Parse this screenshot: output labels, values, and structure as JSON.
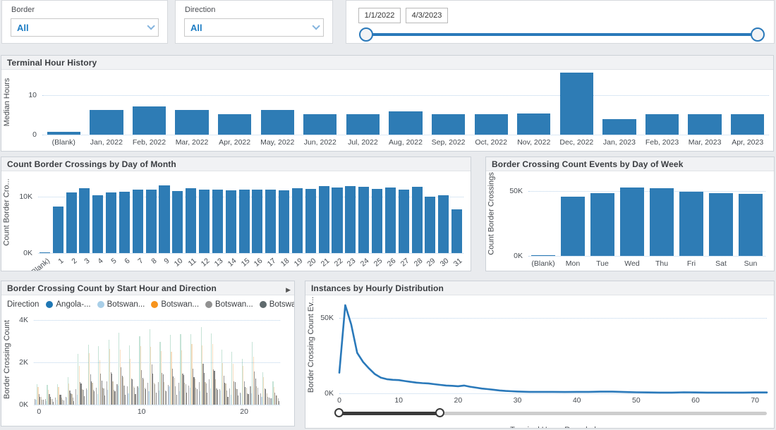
{
  "filters": {
    "border": {
      "label": "Border",
      "value": "All"
    },
    "direction": {
      "label": "Direction",
      "value": "All"
    },
    "date_range": {
      "start": "1/1/2022",
      "end": "4/3/2023"
    }
  },
  "colors": {
    "bar": "#2e7cb5",
    "line": "#2a79ba",
    "accent": "#2a79ba",
    "gridline": "#b9d2ea",
    "spike_palette": [
      "#9e9e9e",
      "#c5d9ee",
      "#bfe0d1",
      "#f6d9b8",
      "#8f8f8f",
      "#6f6f6f",
      "#cabfa8",
      "#a9a9a9",
      "#7d7a76"
    ]
  },
  "chart_data": [
    {
      "id": "terminal_hour_history",
      "type": "bar",
      "title": "Terminal Hour History",
      "ylabel": "Median Hours",
      "ylim": [
        0,
        16.5
      ],
      "yticks": [
        0,
        10
      ],
      "ytick_suffix": "",
      "grid": true,
      "categories": [
        "(Blank)",
        "Jan, 2022",
        "Feb, 2022",
        "Mar, 2022",
        "Apr, 2022",
        "May, 2022",
        "Jun, 2022",
        "Jul, 2022",
        "Aug, 2022",
        "Sep, 2022",
        "Oct, 2022",
        "Nov, 2022",
        "Dec, 2022",
        "Jan, 2023",
        "Feb, 2023",
        "Mar, 2023",
        "Apr, 2023"
      ],
      "values": [
        0.7,
        6.2,
        7.2,
        6.2,
        5.2,
        6.2,
        5.2,
        5.2,
        6.0,
        5.2,
        5.2,
        5.3,
        15.8,
        4.0,
        5.2,
        5.2,
        5.2
      ]
    },
    {
      "id": "count_by_day_of_month",
      "type": "bar",
      "title": "Count Border Crossings by Day of Month",
      "ylabel": "Count Border Cro...",
      "ylim": [
        0,
        14.5
      ],
      "yticks": [
        0,
        10
      ],
      "ytick_suffix": "K",
      "grid": true,
      "categories": [
        "(Blank)",
        "1",
        "2",
        "3",
        "4",
        "5",
        "6",
        "7",
        "8",
        "9",
        "10",
        "11",
        "12",
        "13",
        "14",
        "15",
        "16",
        "17",
        "18",
        "19",
        "20",
        "21",
        "22",
        "23",
        "24",
        "25",
        "26",
        "27",
        "28",
        "29",
        "30",
        "31"
      ],
      "values": [
        0.15,
        8.2,
        10.7,
        11.5,
        10.3,
        10.8,
        10.9,
        11.2,
        11.3,
        12.0,
        11.0,
        11.5,
        11.3,
        11.3,
        11.1,
        11.2,
        11.3,
        11.3,
        11.1,
        11.5,
        11.4,
        11.9,
        11.6,
        11.9,
        11.7,
        11.4,
        11.6,
        11.3,
        11.8,
        10.0,
        10.3,
        7.7
      ]
    },
    {
      "id": "events_by_day_of_week",
      "type": "bar",
      "title": "Border Crossing Count Events by Day of Week",
      "ylabel": "Count Border Crossings",
      "ylim": [
        0,
        65
      ],
      "yticks": [
        0,
        50
      ],
      "ytick_suffix": "K",
      "grid": true,
      "categories": [
        "(Blank)",
        "Mon",
        "Tue",
        "Wed",
        "Thu",
        "Fri",
        "Sat",
        "Sun"
      ],
      "values": [
        0.5,
        45.7,
        48.4,
        52.6,
        52.1,
        49.5,
        48.4,
        47.9
      ]
    },
    {
      "id": "count_by_start_hour_direction",
      "type": "bar",
      "title": "Border Crossing Count by Start Hour and Direction",
      "ylabel": "Border Crossing Count",
      "legend_title": "Direction",
      "legend": [
        {
          "label": "Angola-...",
          "color": "#1f77b4"
        },
        {
          "label": "Botswan...",
          "color": "#a9cfe8"
        },
        {
          "label": "Botswan...",
          "color": "#f7941d"
        },
        {
          "label": "Botswan...",
          "color": "#919191"
        },
        {
          "label": "Botswan...",
          "color": "#5f6a6d"
        }
      ],
      "ylim": [
        0,
        4.3
      ],
      "yticks": [
        0,
        2,
        4
      ],
      "ytick_suffix": "K",
      "grid": true,
      "categories": [
        0,
        1,
        2,
        3,
        4,
        5,
        6,
        7,
        8,
        9,
        10,
        11,
        12,
        13,
        14,
        15,
        16,
        17,
        18,
        19,
        20,
        21,
        22,
        23
      ],
      "cluster_peaks": [
        1.0,
        0.9,
        1.0,
        1.3,
        2.3,
        2.9,
        2.7,
        3.2,
        3.4,
        2.7,
        3.3,
        3.5,
        3.1,
        3.3,
        3.2,
        3.4,
        3.6,
        3.5,
        2.6,
        2.4,
        2.2,
        2.9,
        1.6,
        1.1
      ],
      "xticks": [
        0,
        10,
        20
      ]
    },
    {
      "id": "instances_by_hourly_distribution",
      "type": "line",
      "title": "Instances by Hourly Distribution",
      "ylabel": "Border Crossing Count Ev...",
      "xlabel": "Terminal Hours Rounded",
      "ylim": [
        0,
        65
      ],
      "yticks": [
        0,
        50
      ],
      "ytick_suffix": "K",
      "xlim": [
        0,
        72
      ],
      "xticks": [
        0,
        10,
        20,
        30,
        40,
        50,
        60,
        70
      ],
      "grid": true,
      "points": [
        [
          0,
          13.7
        ],
        [
          1,
          58.5
        ],
        [
          2,
          45.8
        ],
        [
          3,
          26.9
        ],
        [
          4,
          20.8
        ],
        [
          5,
          16.5
        ],
        [
          6,
          12.7
        ],
        [
          7,
          10.4
        ],
        [
          8,
          9.4
        ],
        [
          9,
          9.0
        ],
        [
          10,
          8.8
        ],
        [
          11,
          8.2
        ],
        [
          12,
          7.6
        ],
        [
          13,
          7.1
        ],
        [
          14,
          6.8
        ],
        [
          15,
          6.6
        ],
        [
          16,
          6.1
        ],
        [
          17,
          5.6
        ],
        [
          18,
          5.2
        ],
        [
          19,
          5.0
        ],
        [
          20,
          4.7
        ],
        [
          21,
          5.2
        ],
        [
          22,
          4.4
        ],
        [
          23,
          3.8
        ],
        [
          24,
          3.2
        ],
        [
          25,
          2.8
        ],
        [
          26,
          2.4
        ],
        [
          27,
          1.9
        ],
        [
          28,
          1.6
        ],
        [
          29,
          1.4
        ],
        [
          30,
          1.2
        ],
        [
          32,
          1.0
        ],
        [
          34,
          1.0
        ],
        [
          36,
          1.0
        ],
        [
          38,
          0.9
        ],
        [
          40,
          1.0
        ],
        [
          42,
          1.0
        ],
        [
          44,
          1.1
        ],
        [
          46,
          1.1
        ],
        [
          48,
          0.9
        ],
        [
          50,
          0.7
        ],
        [
          52,
          0.6
        ],
        [
          54,
          0.5
        ],
        [
          56,
          0.5
        ],
        [
          58,
          0.7
        ],
        [
          60,
          0.6
        ],
        [
          62,
          0.5
        ],
        [
          64,
          0.5
        ],
        [
          66,
          0.5
        ],
        [
          68,
          0.5
        ],
        [
          70,
          0.6
        ],
        [
          72,
          0.6
        ]
      ],
      "slider": {
        "min": 0,
        "max": 72,
        "from": 0,
        "to": 17
      }
    }
  ]
}
